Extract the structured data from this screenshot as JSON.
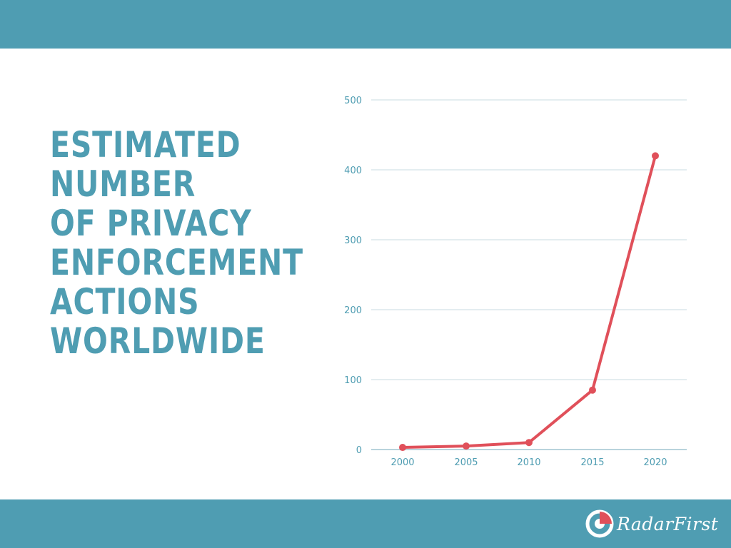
{
  "colors": {
    "band": "#4f9db2",
    "title": "#4f9db2",
    "axis_text": "#4f9db2",
    "grid": "#dbe7ec",
    "line": "#e0505a",
    "logo_accent": "#e0505a"
  },
  "title_lines": [
    "ESTIMATED",
    "NUMBER",
    "OF PRIVACY",
    "ENFORCEMENT",
    "ACTIONS",
    "WORLDWIDE"
  ],
  "logo": {
    "text": "RadarFirst",
    "icon": "radar-logo-icon"
  },
  "chart_data": {
    "type": "line",
    "title": "",
    "xlabel": "",
    "ylabel": "",
    "x": [
      2000,
      2005,
      2010,
      2015,
      2020
    ],
    "values": [
      3,
      5,
      10,
      85,
      420
    ],
    "ylim": [
      0,
      500
    ],
    "yticks": [
      0,
      100,
      200,
      300,
      400,
      500
    ],
    "xticks": [
      "2000",
      "2005",
      "2010",
      "2015",
      "2020"
    ],
    "grid": true,
    "legend": "none"
  }
}
